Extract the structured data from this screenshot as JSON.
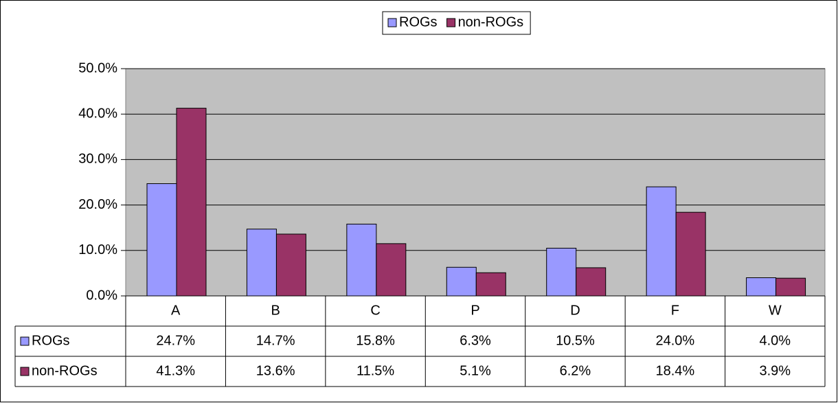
{
  "chart_data": {
    "type": "bar",
    "categories": [
      "A",
      "B",
      "C",
      "P",
      "D",
      "F",
      "W"
    ],
    "series": [
      {
        "name": "ROGs",
        "color": "#9999ff",
        "values": [
          24.7,
          14.7,
          15.8,
          6.3,
          10.5,
          24.0,
          4.0
        ],
        "value_labels": [
          "24.7%",
          "14.7%",
          "15.8%",
          "6.3%",
          "10.5%",
          "24.0%",
          "4.0%"
        ]
      },
      {
        "name": "non-ROGs",
        "color": "#993366",
        "values": [
          41.3,
          13.6,
          11.5,
          5.1,
          6.2,
          18.4,
          3.9
        ],
        "value_labels": [
          "41.3%",
          "13.6%",
          "11.5%",
          "5.1%",
          "6.2%",
          "18.4%",
          "3.9%"
        ]
      }
    ],
    "ylim": [
      0,
      50
    ],
    "yticks": [
      {
        "value": 0,
        "label": "0.0%"
      },
      {
        "value": 10,
        "label": "10.0%"
      },
      {
        "value": 20,
        "label": "20.0%"
      },
      {
        "value": 30,
        "label": "30.0%"
      },
      {
        "value": 40,
        "label": "40.0%"
      },
      {
        "value": 50,
        "label": "50.0%"
      }
    ],
    "grid": true,
    "legend": "top",
    "plot_background": "#c0c0c0"
  }
}
